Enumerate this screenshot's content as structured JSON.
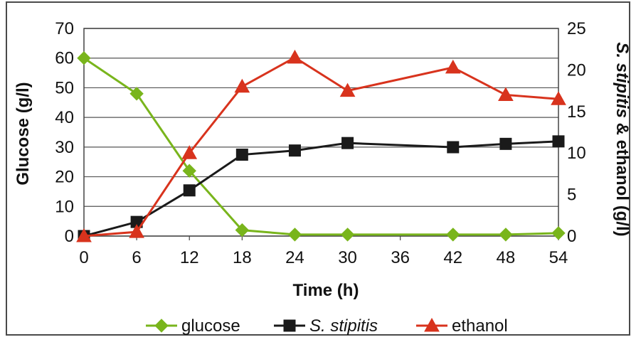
{
  "chart_data": {
    "type": "line",
    "xlabel": "Time (h)",
    "ylabel_left": "Glucose (g/l)",
    "ylabel_right_italic": "S. stipitis",
    "ylabel_right_rest": " & ethanol (g/l)",
    "x_ticks": [
      "0",
      "6",
      "12",
      "18",
      "24",
      "30",
      "36",
      "42",
      "48",
      "54"
    ],
    "y_left_ticks": [
      "0",
      "10",
      "20",
      "30",
      "40",
      "50",
      "60",
      "70"
    ],
    "y_right_ticks": [
      "0",
      "5",
      "10",
      "15",
      "20",
      "25"
    ],
    "xlim": [
      0,
      54
    ],
    "ylim_left": [
      0,
      70
    ],
    "ylim_right": [
      0,
      25
    ],
    "grid": "horizontal",
    "legend_position": "bottom",
    "series": [
      {
        "name": "glucose",
        "axis": "left",
        "color": "#79b51c",
        "marker": "diamond",
        "x": [
          0,
          6,
          12,
          18,
          24,
          30,
          42,
          48,
          54
        ],
        "values": [
          60,
          48,
          22,
          2,
          0.5,
          0.5,
          0.5,
          0.5,
          1
        ]
      },
      {
        "name": "S. stipitis",
        "italic": true,
        "axis": "right",
        "color": "#1a1a1a",
        "marker": "square",
        "x": [
          0,
          6,
          12,
          18,
          24,
          30,
          42,
          48,
          54
        ],
        "values": [
          0,
          1.7,
          5.5,
          9.8,
          10.3,
          11.2,
          10.7,
          11.1,
          11.4
        ]
      },
      {
        "name": "ethanol",
        "axis": "right",
        "color": "#d8331d",
        "marker": "triangle",
        "x": [
          0,
          6,
          12,
          18,
          24,
          30,
          42,
          48,
          54
        ],
        "values": [
          0,
          0.5,
          10,
          18,
          21.5,
          17.5,
          20.3,
          17,
          16.5
        ]
      }
    ]
  }
}
